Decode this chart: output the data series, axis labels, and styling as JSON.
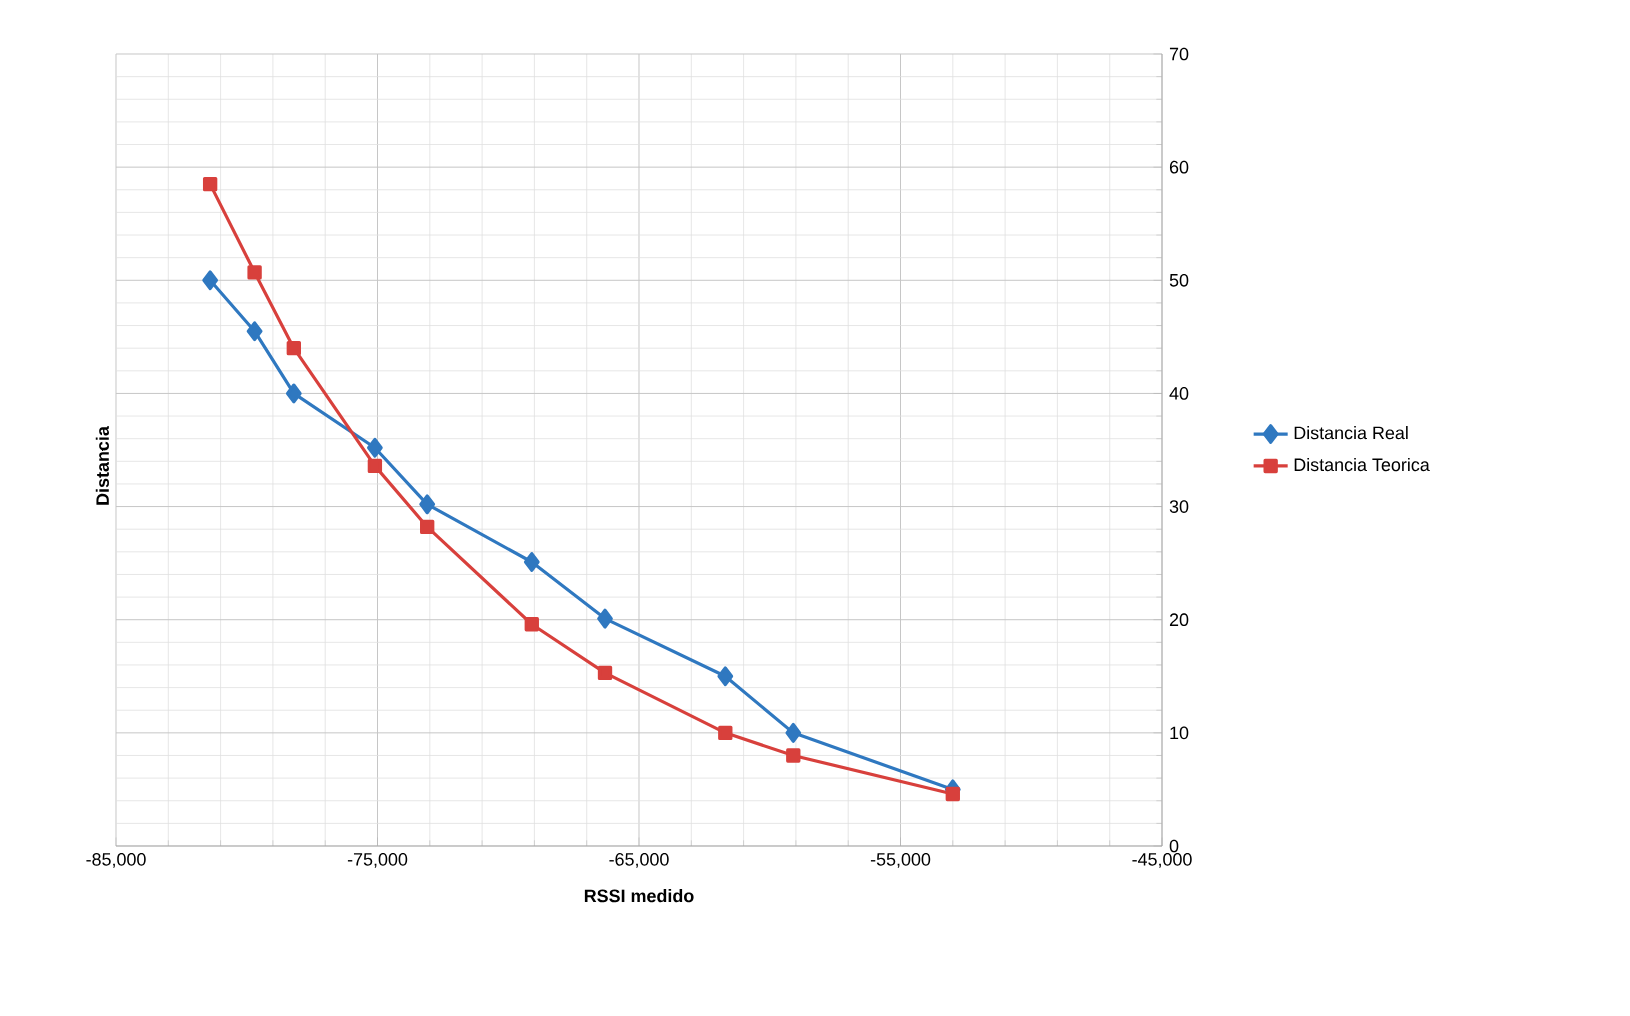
{
  "chart_data": {
    "type": "line",
    "xlabel": "RSSI medido",
    "ylabel": "Distancia",
    "x": [
      -81400,
      -79700,
      -78200,
      -75100,
      -73100,
      -69100,
      -66300,
      -61700,
      -59100,
      -53000
    ],
    "series": [
      {
        "name": "Distancia Real",
        "color": "#2f78c0",
        "marker": "diamond",
        "values": [
          50,
          45.5,
          40,
          35.2,
          30.2,
          25.1,
          20.1,
          15,
          10,
          5
        ]
      },
      {
        "name": "Distancia Teorica",
        "color": "#d8403c",
        "marker": "square",
        "values": [
          58.5,
          50.7,
          44,
          33.6,
          28.2,
          19.6,
          15.3,
          10,
          8,
          4.6
        ]
      }
    ],
    "xlim": [
      -85000,
      -45000
    ],
    "ylim": [
      0,
      70
    ],
    "xticks": [
      {
        "value": -85000,
        "label": "-85,000"
      },
      {
        "value": -75000,
        "label": "-75,000"
      },
      {
        "value": -65000,
        "label": "-65,000"
      },
      {
        "value": -55000,
        "label": "-55,000"
      },
      {
        "value": -45000,
        "label": "-45,000"
      }
    ],
    "yticks": [
      0,
      10,
      20,
      30,
      40,
      50,
      60,
      70
    ],
    "grid": true,
    "legend": "right"
  }
}
